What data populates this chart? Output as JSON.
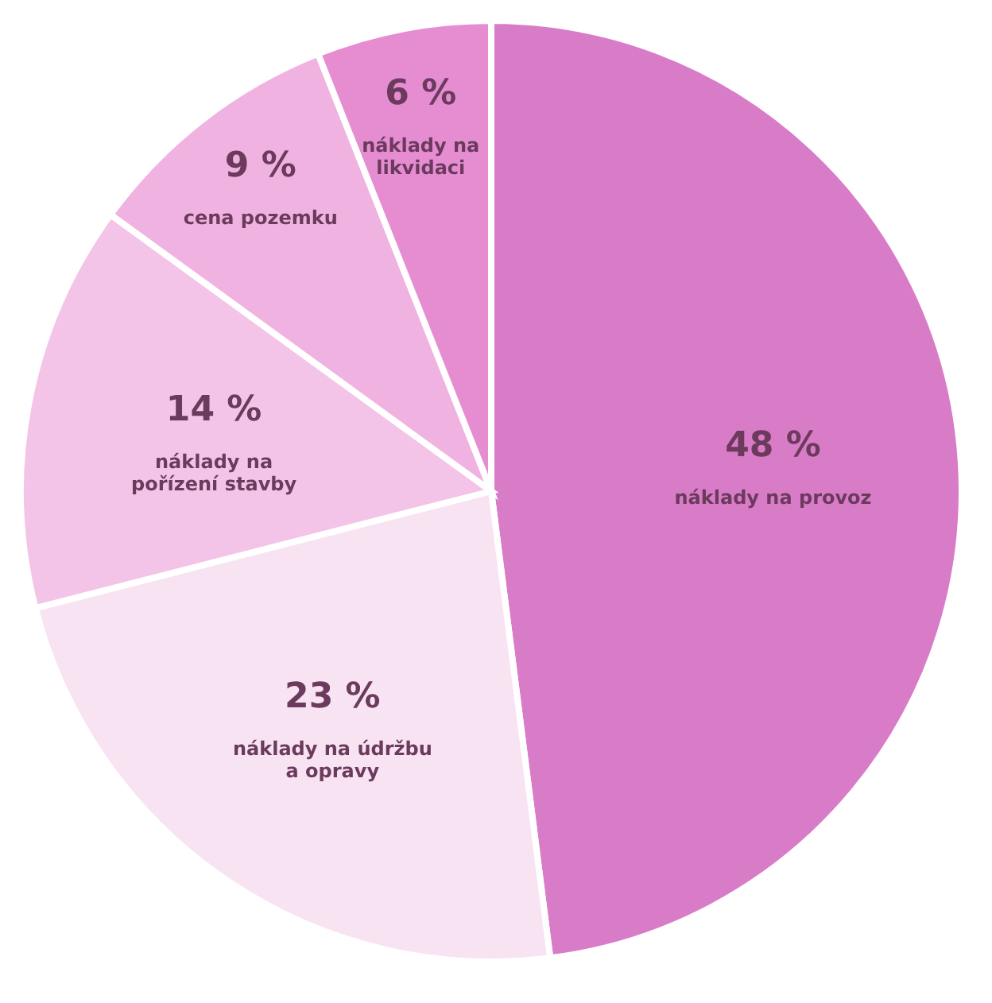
{
  "chart_data": {
    "type": "pie",
    "categories": [
      "náklady na provoz",
      "náklady na údržbu\na opravy",
      "náklady na\npořízení stavby",
      "cena pozemku",
      "náklady na\nlikvidaci"
    ],
    "values": [
      48,
      23,
      14,
      9,
      6
    ],
    "value_labels": [
      "48 %",
      "23 %",
      "14 %",
      "9 %",
      "6 %"
    ],
    "colors": [
      "#d97cc8",
      "#f7e3f2",
      "#f4c4e8",
      "#f0b3e1",
      "#e68dd2"
    ],
    "legend": false
  }
}
